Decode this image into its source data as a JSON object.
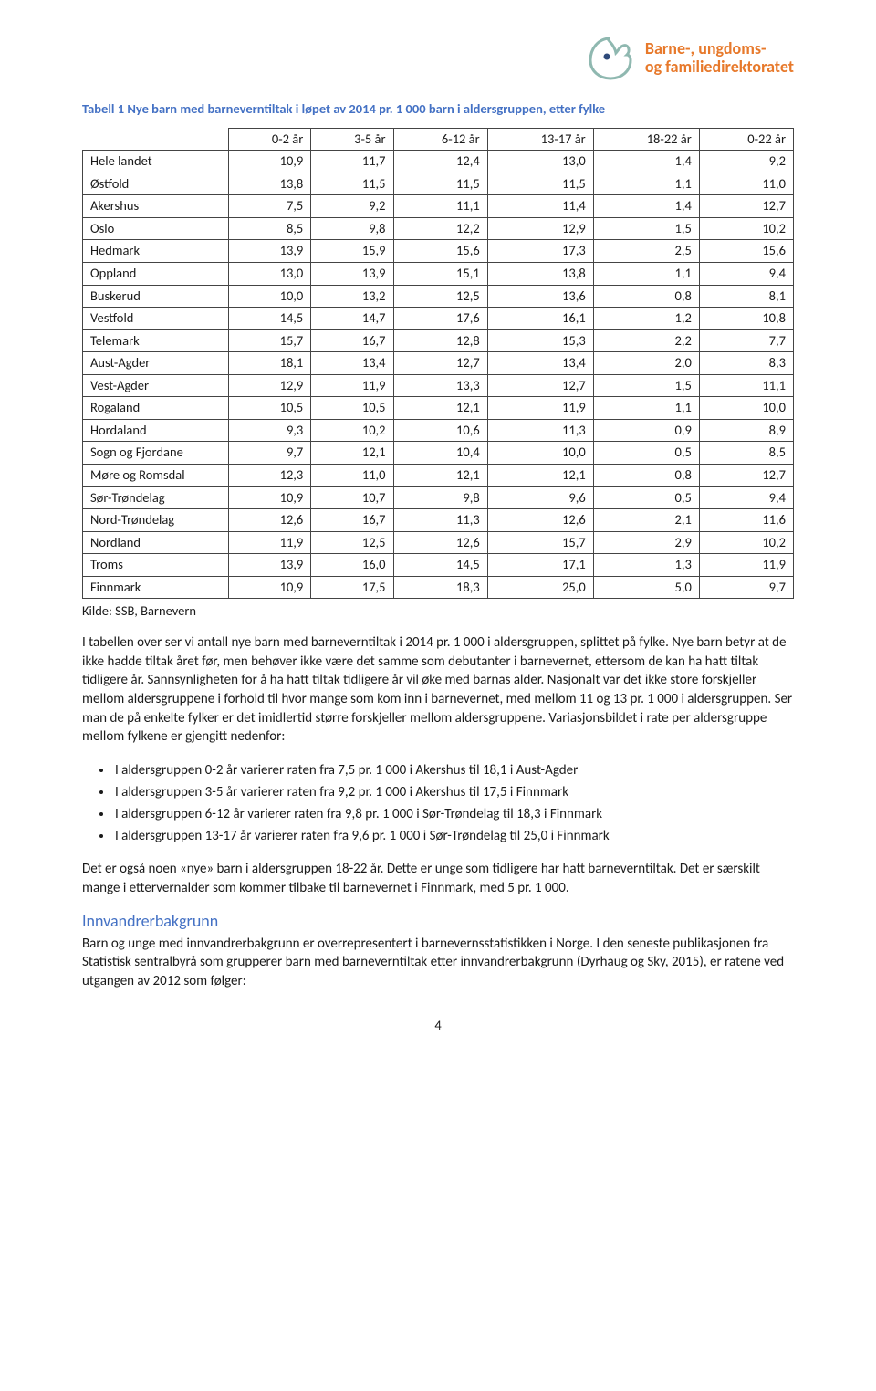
{
  "logo": {
    "line1": "Barne-, ungdoms-",
    "line2": "og familiedirektoratet",
    "accent_color": "#e7792b",
    "circle_color": "#8fb8b0",
    "dot_color": "#2e4a7a"
  },
  "table": {
    "caption": "Tabell 1 Nye barn med barneverntiltak i løpet av 2014 pr. 1 000 barn i aldersgruppen, etter fylke",
    "caption_color": "#4471c4",
    "columns": [
      "0-2 år",
      "3-5 år",
      "6-12 år",
      "13-17 år",
      "18-22 år",
      "0-22 år"
    ],
    "rows": [
      {
        "label": "Hele landet",
        "values": [
          "10,9",
          "11,7",
          "12,4",
          "13,0",
          "1,4",
          "9,2"
        ]
      },
      {
        "label": "Østfold",
        "values": [
          "13,8",
          "11,5",
          "11,5",
          "11,5",
          "1,1",
          "11,0"
        ]
      },
      {
        "label": "Akershus",
        "values": [
          "7,5",
          "9,2",
          "11,1",
          "11,4",
          "1,4",
          "12,7"
        ]
      },
      {
        "label": "Oslo",
        "values": [
          "8,5",
          "9,8",
          "12,2",
          "12,9",
          "1,5",
          "10,2"
        ]
      },
      {
        "label": "Hedmark",
        "values": [
          "13,9",
          "15,9",
          "15,6",
          "17,3",
          "2,5",
          "15,6"
        ]
      },
      {
        "label": "Oppland",
        "values": [
          "13,0",
          "13,9",
          "15,1",
          "13,8",
          "1,1",
          "9,4"
        ]
      },
      {
        "label": "Buskerud",
        "values": [
          "10,0",
          "13,2",
          "12,5",
          "13,6",
          "0,8",
          "8,1"
        ]
      },
      {
        "label": "Vestfold",
        "values": [
          "14,5",
          "14,7",
          "17,6",
          "16,1",
          "1,2",
          "10,8"
        ]
      },
      {
        "label": "Telemark",
        "values": [
          "15,7",
          "16,7",
          "12,8",
          "15,3",
          "2,2",
          "7,7"
        ]
      },
      {
        "label": "Aust-Agder",
        "values": [
          "18,1",
          "13,4",
          "12,7",
          "13,4",
          "2,0",
          "8,3"
        ]
      },
      {
        "label": "Vest-Agder",
        "values": [
          "12,9",
          "11,9",
          "13,3",
          "12,7",
          "1,5",
          "11,1"
        ]
      },
      {
        "label": "Rogaland",
        "values": [
          "10,5",
          "10,5",
          "12,1",
          "11,9",
          "1,1",
          "10,0"
        ]
      },
      {
        "label": "Hordaland",
        "values": [
          "9,3",
          "10,2",
          "10,6",
          "11,3",
          "0,9",
          "8,9"
        ]
      },
      {
        "label": "Sogn og Fjordane",
        "values": [
          "9,7",
          "12,1",
          "10,4",
          "10,0",
          "0,5",
          "8,5"
        ]
      },
      {
        "label": "Møre og Romsdal",
        "values": [
          "12,3",
          "11,0",
          "12,1",
          "12,1",
          "0,8",
          "12,7"
        ]
      },
      {
        "label": "Sør-Trøndelag",
        "values": [
          "10,9",
          "10,7",
          "9,8",
          "9,6",
          "0,5",
          "9,4"
        ]
      },
      {
        "label": "Nord-Trøndelag",
        "values": [
          "12,6",
          "16,7",
          "11,3",
          "12,6",
          "2,1",
          "11,6"
        ]
      },
      {
        "label": "Nordland",
        "values": [
          "11,9",
          "12,5",
          "12,6",
          "15,7",
          "2,9",
          "10,2"
        ]
      },
      {
        "label": "Troms",
        "values": [
          "13,9",
          "16,0",
          "14,5",
          "17,1",
          "1,3",
          "11,9"
        ]
      },
      {
        "label": "Finnmark",
        "values": [
          "10,9",
          "17,5",
          "18,3",
          "25,0",
          "5,0",
          "9,7"
        ]
      }
    ],
    "border_color": "#444444",
    "font_size": 14.5
  },
  "source_line": "Kilde: SSB, Barnevern",
  "paragraph1": "I tabellen over ser vi antall nye barn med barneverntiltak i 2014 pr. 1 000 i aldersgruppen, splittet på fylke. Nye barn betyr at de ikke hadde tiltak året før, men behøver ikke være det samme som debutanter i barnevernet, ettersom de kan ha hatt tiltak tidligere år. Sannsynligheten for å ha hatt tiltak tidligere år vil øke med barnas alder. Nasjonalt var det ikke store forskjeller mellom aldersgruppene i forhold til hvor mange som kom inn i barnevernet, med mellom 11 og 13 pr. 1 000 i aldersgruppen. Ser man de på enkelte fylker er det imidlertid større forskjeller mellom aldersgruppene. Variasjonsbildet i rate per aldersgruppe mellom fylkene er gjengitt nedenfor:",
  "bullets": [
    "I aldersgruppen 0-2 år varierer raten fra 7,5 pr. 1 000 i Akershus til 18,1 i Aust-Agder",
    "I aldersgruppen 3-5 år varierer raten fra 9,2 pr. 1 000 i Akershus til 17,5 i Finnmark",
    "I aldersgruppen 6-12 år varierer raten fra 9,8 pr. 1 000 i Sør-Trøndelag til 18,3 i Finnmark",
    "I aldersgruppen 13-17 år varierer raten fra 9,6 pr. 1 000 i Sør-Trøndelag til 25,0 i Finnmark"
  ],
  "paragraph2": "Det er også noen «nye» barn i aldersgruppen 18-22 år. Dette er unge som tidligere har hatt barneverntiltak. Det er særskilt mange i ettervernalder som kommer tilbake til barnevernet i Finnmark, med 5 pr. 1 000.",
  "section_heading": "Innvandrerbakgrunn",
  "section_heading_color": "#4471c4",
  "paragraph3": "Barn og unge med innvandrerbakgrunn er overrepresentert i barnevernsstatistikken i Norge. I den seneste publikasjonen fra Statistisk sentralbyrå som grupperer barn med barneverntiltak etter innvandrerbakgrunn (Dyrhaug og Sky, 2015), er ratene ved utgangen av 2012 som følger:",
  "page_number": "4"
}
